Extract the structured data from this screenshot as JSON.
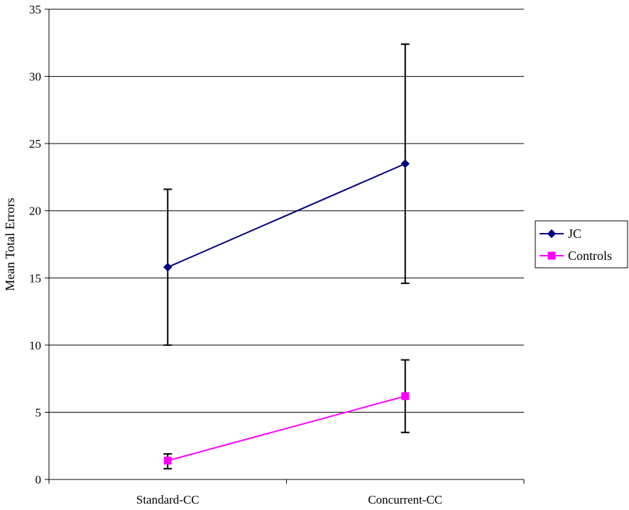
{
  "chart_data": {
    "type": "line",
    "title": "",
    "xlabel": "",
    "ylabel": "Mean Total Errors",
    "ylim": [
      0,
      35
    ],
    "yticks": [
      0,
      5,
      10,
      15,
      20,
      25,
      30,
      35
    ],
    "grid": true,
    "legend_position": "right",
    "categories": [
      "Standard-CC",
      "Concurrent-CC"
    ],
    "series": [
      {
        "name": "JC",
        "marker": "diamond",
        "color": "#000080",
        "values": [
          15.8,
          23.5
        ],
        "error_low": [
          10.0,
          14.6
        ],
        "error_high": [
          21.6,
          32.4
        ]
      },
      {
        "name": "Controls",
        "marker": "square",
        "color": "#ff00ff",
        "values": [
          1.4,
          6.2
        ],
        "error_low": [
          0.8,
          3.5
        ],
        "error_high": [
          1.9,
          8.9
        ]
      }
    ]
  },
  "colors": {
    "axis": "#000000",
    "gridline": "#000000",
    "error_bar": "#000000",
    "background": "#ffffff"
  }
}
